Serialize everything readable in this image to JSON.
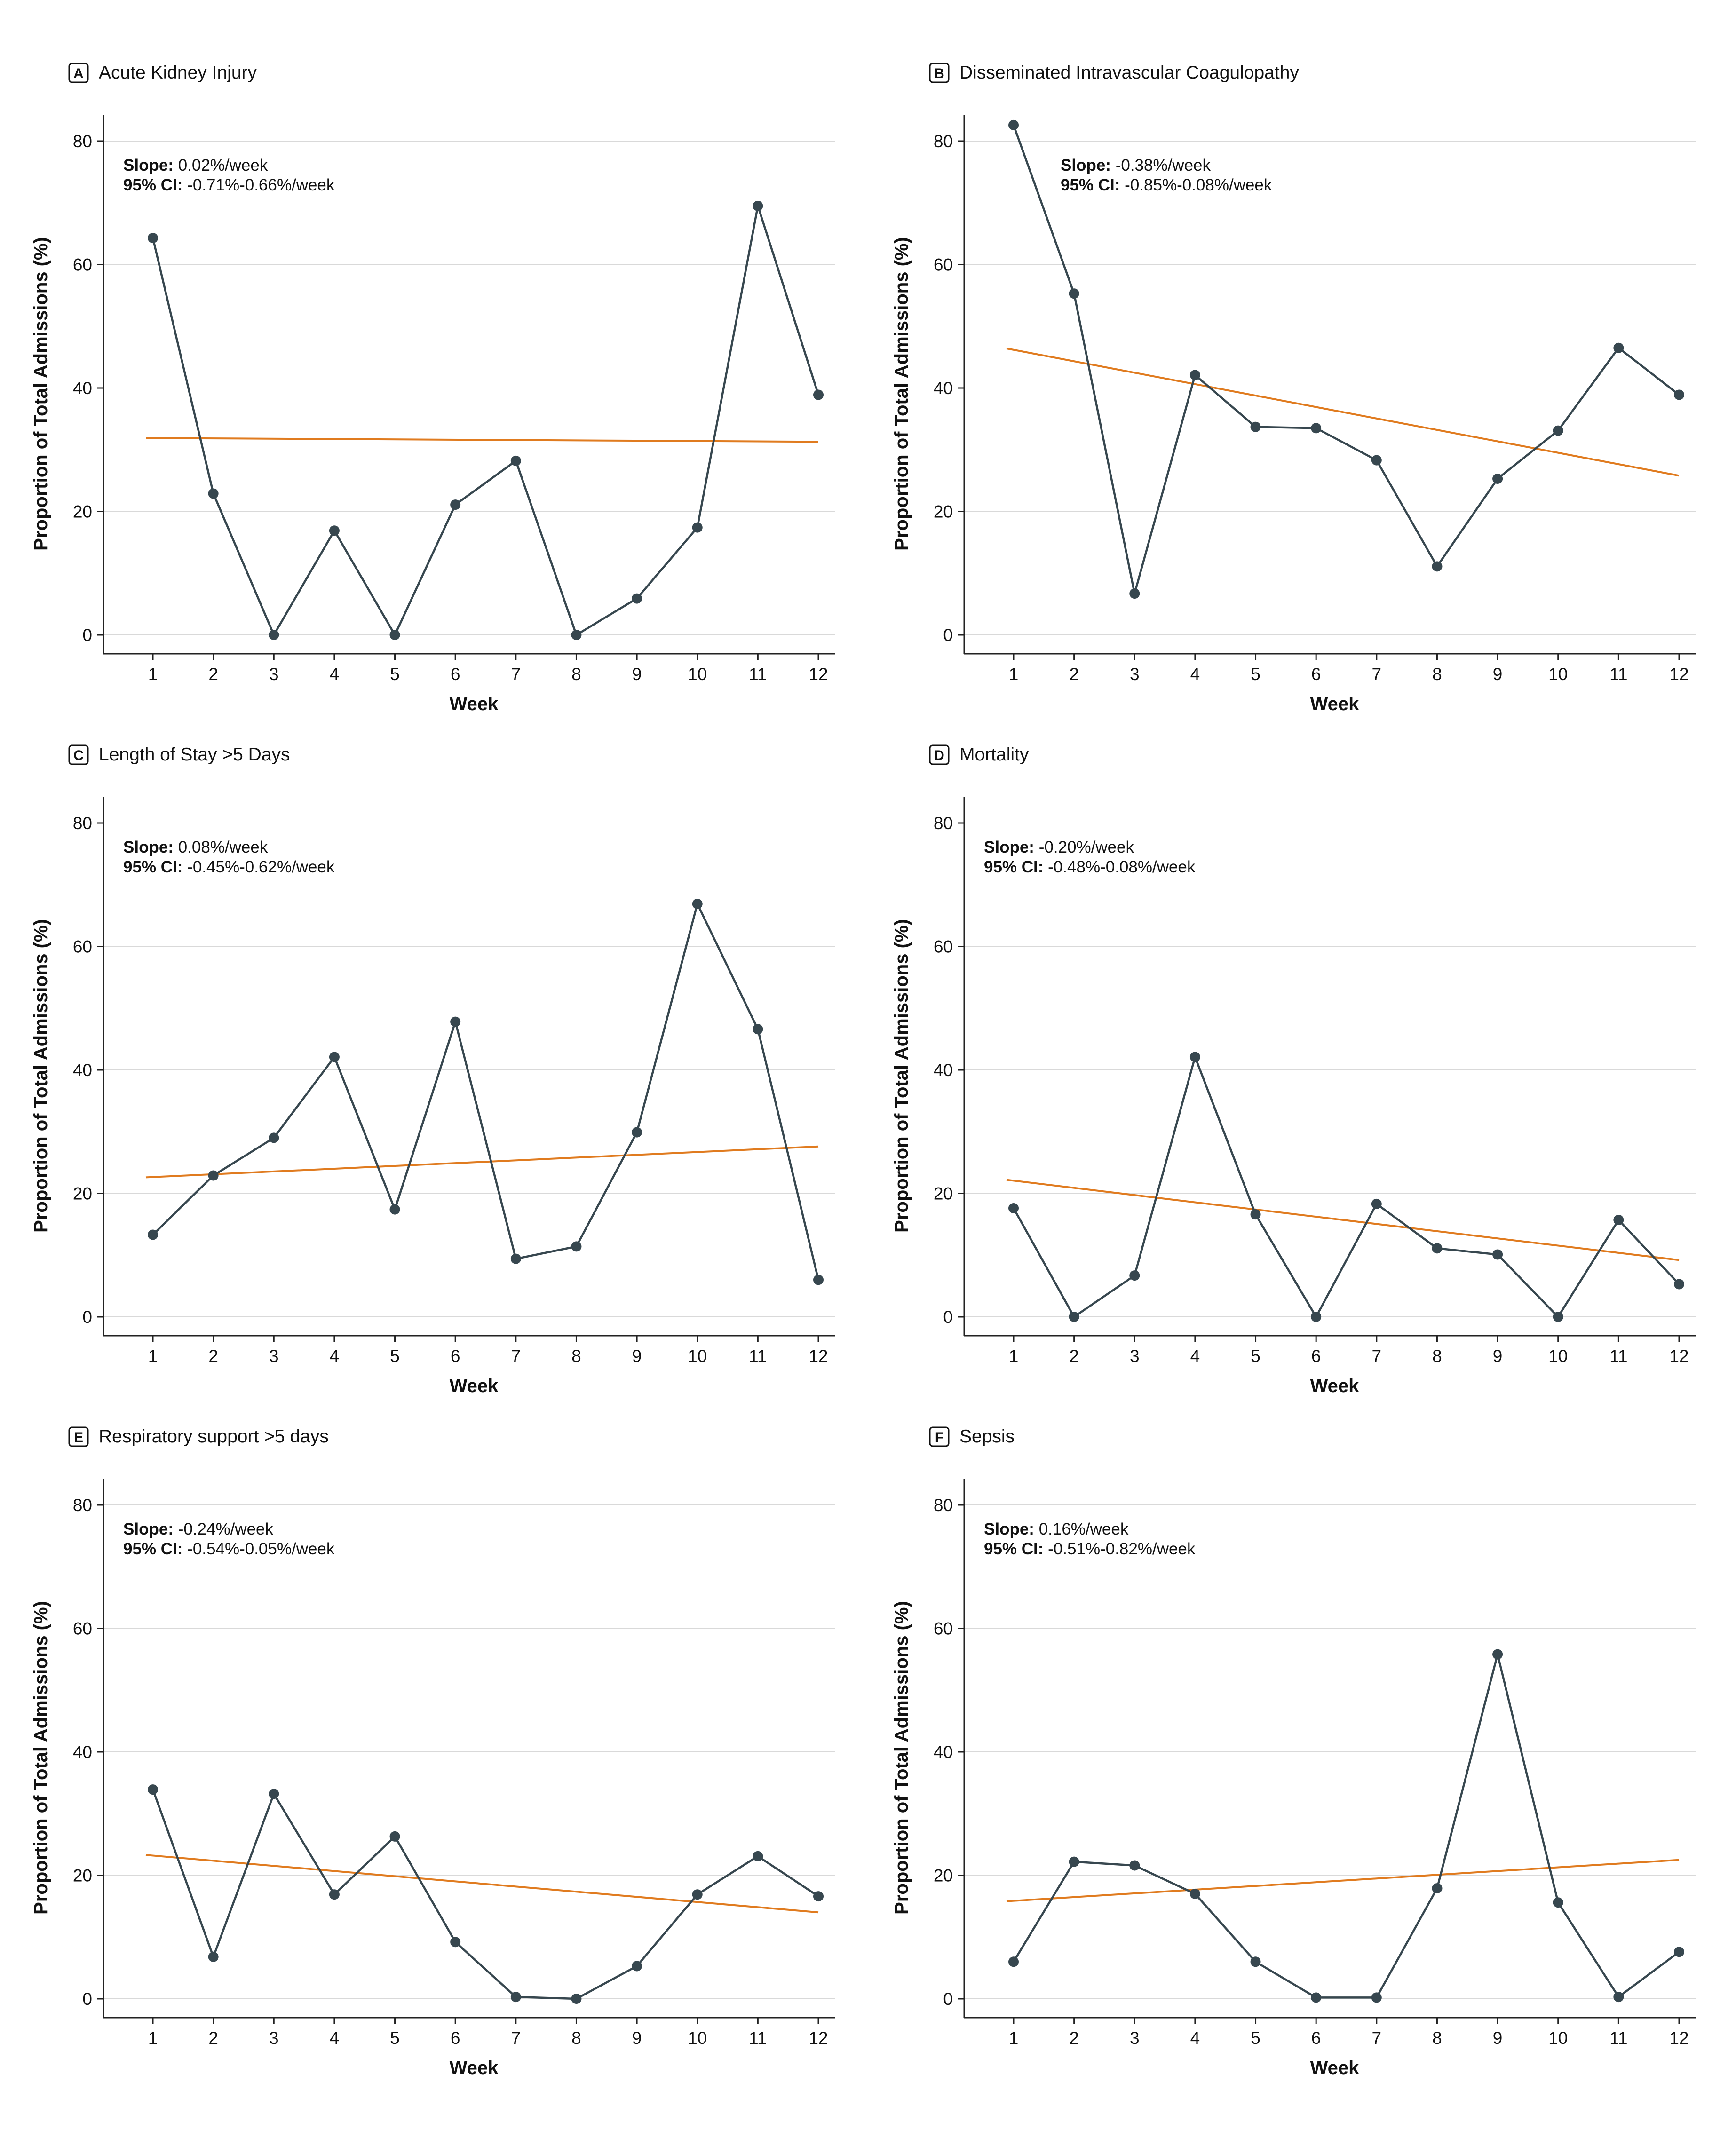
{
  "figure": {
    "line_color": "#37474f",
    "trend_color": "#e07b1f",
    "grid_color": "#d9d9d9",
    "axis_color": "#222222"
  },
  "chart_data": [
    {
      "type": "line",
      "letter": "A",
      "title": "Acute Kidney Injury",
      "xlabel": "Week",
      "ylabel": "Proportion of Total Admissions (%)",
      "x": [
        1,
        2,
        3,
        4,
        5,
        6,
        7,
        8,
        9,
        10,
        11,
        12
      ],
      "ylim": [
        -2.5,
        84
      ],
      "yticks": [
        0,
        20,
        40,
        60,
        80
      ],
      "grid": true,
      "series": [
        {
          "values": [
            64.3,
            22.9,
            0,
            16.9,
            0,
            21.1,
            28.2,
            0,
            5.9,
            17.4,
            69.5,
            38.9
          ]
        }
      ],
      "trend": {
        "start": [
          1,
          31.9
        ],
        "end": [
          12,
          31.3
        ]
      },
      "annotation": {
        "slope_label": "Slope:",
        "slope_value": "0.02%/week",
        "ci_label": "95% CI:",
        "ci_value": "-0.71%-0.66%/week"
      }
    },
    {
      "type": "line",
      "letter": "B",
      "title": "Disseminated Intravascular Coagulopathy",
      "xlabel": "Week",
      "ylabel": "Proportion of Total Admissions (%)",
      "x": [
        1,
        2,
        3,
        4,
        5,
        6,
        7,
        8,
        9,
        10,
        11,
        12
      ],
      "ylim": [
        -2.5,
        84
      ],
      "yticks": [
        0,
        20,
        40,
        60,
        80
      ],
      "grid": true,
      "series": [
        {
          "values": [
            82.6,
            55.3,
            6.7,
            42.1,
            33.7,
            33.5,
            28.3,
            11.1,
            25.3,
            33.1,
            46.5,
            38.9
          ]
        }
      ],
      "trend": {
        "start": [
          1,
          46.4
        ],
        "end": [
          12,
          25.8
        ]
      },
      "annotation": {
        "slope_label": "Slope:",
        "slope_value": "-0.38%/week",
        "ci_label": "95% CI:",
        "ci_value": "-0.85%-0.08%/week"
      }
    },
    {
      "type": "line",
      "letter": "C",
      "title": "Length of Stay >5 Days",
      "xlabel": "Week",
      "ylabel": "Proportion of Total Admissions (%)",
      "x": [
        1,
        2,
        3,
        4,
        5,
        6,
        7,
        8,
        9,
        10,
        11,
        12
      ],
      "ylim": [
        -2.5,
        84
      ],
      "yticks": [
        0,
        20,
        40,
        60,
        80
      ],
      "grid": true,
      "series": [
        {
          "values": [
            13.3,
            22.9,
            29.0,
            42.1,
            17.4,
            47.8,
            9.4,
            11.4,
            29.9,
            66.9,
            46.6,
            6.0
          ]
        }
      ],
      "trend": {
        "start": [
          1,
          22.6
        ],
        "end": [
          12,
          27.6
        ]
      },
      "annotation": {
        "slope_label": "Slope:",
        "slope_value": "0.08%/week",
        "ci_label": "95% CI:",
        "ci_value": "-0.45%-0.62%/week"
      }
    },
    {
      "type": "line",
      "letter": "D",
      "title": "Mortality",
      "xlabel": "Week",
      "ylabel": "Proportion of Total Admissions (%)",
      "x": [
        1,
        2,
        3,
        4,
        5,
        6,
        7,
        8,
        9,
        10,
        11,
        12
      ],
      "ylim": [
        -2.5,
        84
      ],
      "yticks": [
        0,
        20,
        40,
        60,
        80
      ],
      "grid": true,
      "series": [
        {
          "values": [
            17.6,
            0,
            6.7,
            42.1,
            16.6,
            0,
            18.3,
            11.1,
            10.1,
            0,
            15.7,
            5.3
          ]
        }
      ],
      "trend": {
        "start": [
          1,
          22.2
        ],
        "end": [
          12,
          9.2
        ]
      },
      "annotation": {
        "slope_label": "Slope:",
        "slope_value": "-0.20%/week",
        "ci_label": "95% CI:",
        "ci_value": "-0.48%-0.08%/week"
      }
    },
    {
      "type": "line",
      "letter": "E",
      "title": "Respiratory support >5 days",
      "xlabel": "Week",
      "ylabel": "Proportion of Total Admissions (%)",
      "x": [
        1,
        2,
        3,
        4,
        5,
        6,
        7,
        8,
        9,
        10,
        11,
        12
      ],
      "ylim": [
        -2.5,
        84
      ],
      "yticks": [
        0,
        20,
        40,
        60,
        80
      ],
      "grid": true,
      "series": [
        {
          "values": [
            33.9,
            6.8,
            33.2,
            16.9,
            26.3,
            9.2,
            0.3,
            0,
            5.3,
            16.9,
            23.1,
            16.6
          ]
        }
      ],
      "trend": {
        "start": [
          1,
          23.3
        ],
        "end": [
          12,
          14.0
        ]
      },
      "annotation": {
        "slope_label": "Slope:",
        "slope_value": "-0.24%/week",
        "ci_label": "95% CI:",
        "ci_value": "-0.54%-0.05%/week"
      }
    },
    {
      "type": "line",
      "letter": "F",
      "title": "Sepsis",
      "xlabel": "Week",
      "ylabel": "Proportion of Total Admissions (%)",
      "x": [
        1,
        2,
        3,
        4,
        5,
        6,
        7,
        8,
        9,
        10,
        11,
        12
      ],
      "ylim": [
        -2.5,
        84
      ],
      "yticks": [
        0,
        20,
        40,
        60,
        80
      ],
      "grid": true,
      "series": [
        {
          "values": [
            6.0,
            22.2,
            21.6,
            17.0,
            6.0,
            0.2,
            0.2,
            17.9,
            55.8,
            15.6,
            0.3,
            7.6
          ]
        }
      ],
      "trend": {
        "start": [
          1,
          15.8
        ],
        "end": [
          12,
          22.5
        ]
      },
      "annotation": {
        "slope_label": "Slope:",
        "slope_value": "0.16%/week",
        "ci_label": "95% CI:",
        "ci_value": "-0.51%-0.82%/week"
      }
    }
  ]
}
